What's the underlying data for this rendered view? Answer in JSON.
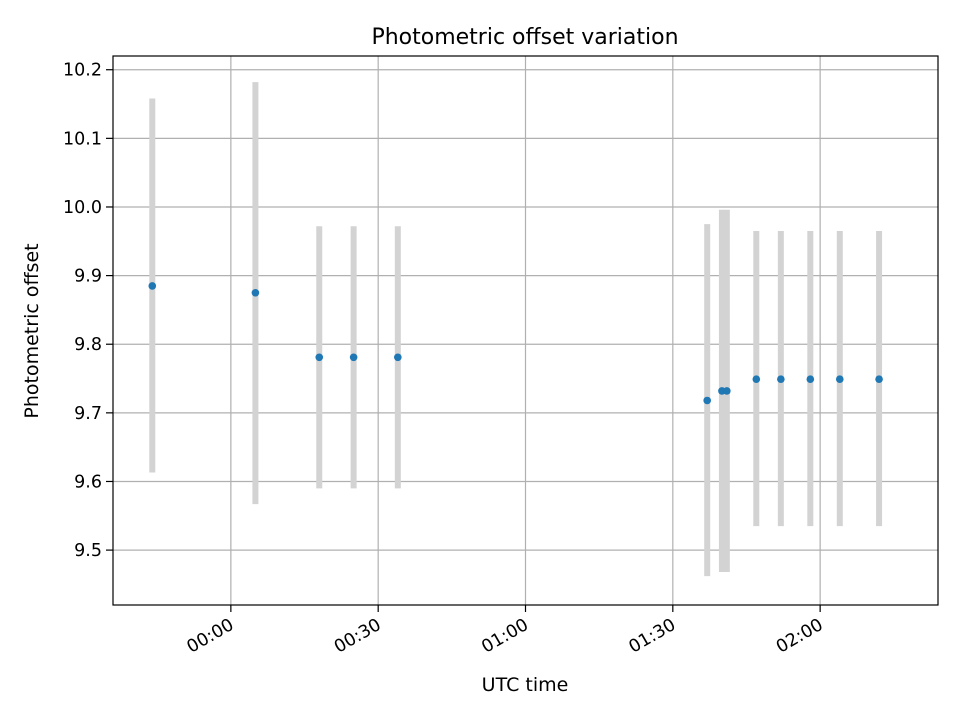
{
  "chart_data": {
    "type": "scatter",
    "title": "Photometric offset variation",
    "xlabel": "UTC time",
    "ylabel": "Photometric offset",
    "x_axis_kind": "time",
    "x_ticks": [
      "00:00",
      "00:30",
      "01:00",
      "01:30",
      "02:00"
    ],
    "y_ticks": [
      "9.5",
      "9.6",
      "9.7",
      "9.8",
      "9.9",
      "10.0",
      "10.1",
      "10.2"
    ],
    "xlim": [
      "-00:24",
      "02:24"
    ],
    "ylim": [
      9.42,
      10.22
    ],
    "grid": true,
    "legend": "none",
    "colors": {
      "point": "#1f77b4",
      "errorbar": "#d3d3d3",
      "grid": "#b0b0b0"
    },
    "series": [
      {
        "x": [
          "-00:16",
          "00:05",
          "00:18",
          "00:25",
          "00:34",
          "01:37",
          "01:40",
          "01:41",
          "01:47",
          "01:52",
          "01:58",
          "02:04",
          "02:12"
        ],
        "y": [
          9.885,
          9.875,
          9.781,
          9.781,
          9.781,
          9.718,
          9.732,
          9.732,
          9.749,
          9.749,
          9.749,
          9.749,
          9.749
        ],
        "y_low": [
          9.613,
          9.567,
          9.59,
          9.59,
          9.59,
          9.462,
          9.468,
          9.468,
          9.535,
          9.535,
          9.535,
          9.535,
          9.535
        ],
        "y_high": [
          10.158,
          10.182,
          9.972,
          9.972,
          9.972,
          9.975,
          9.996,
          9.996,
          9.965,
          9.965,
          9.965,
          9.965,
          9.965
        ]
      }
    ]
  }
}
